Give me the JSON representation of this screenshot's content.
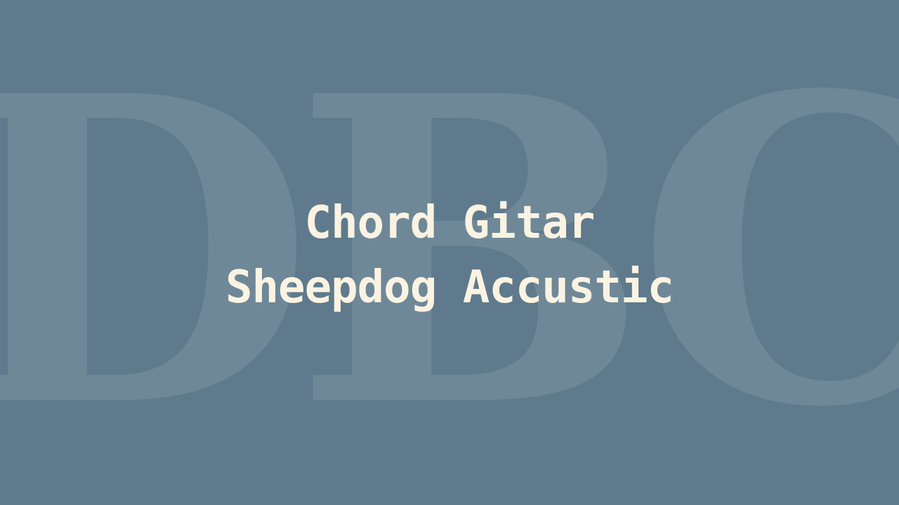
{
  "colors": {
    "background": "#5f7a8c",
    "watermark": "#c9d6de",
    "title": "#fbf3e2"
  },
  "watermark": {
    "text": "DBC"
  },
  "title": {
    "line1": "Chord Gitar",
    "line2": "Sheepdog Accustic"
  }
}
